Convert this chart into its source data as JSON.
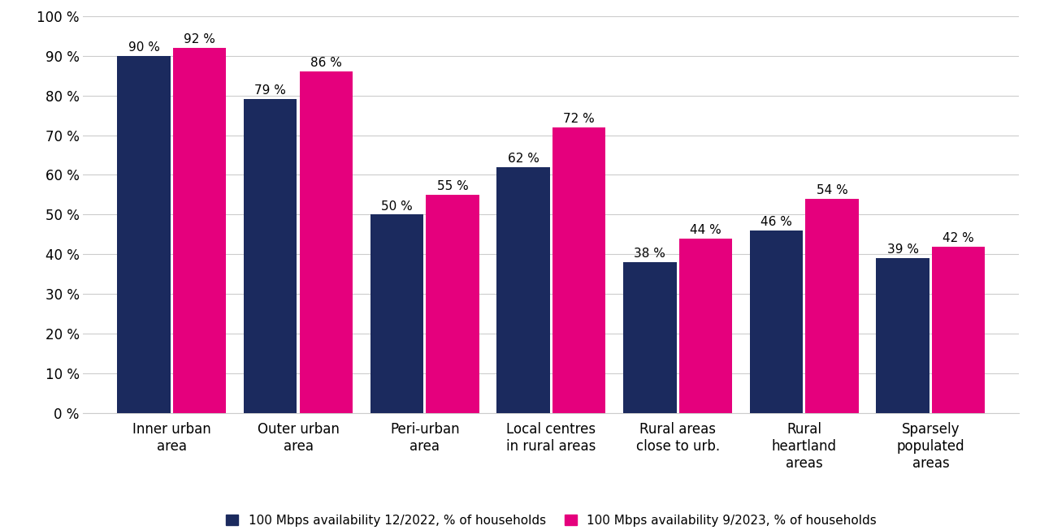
{
  "categories": [
    "Inner urban\narea",
    "Outer urban\narea",
    "Peri-urban\narea",
    "Local centres\nin rural areas",
    "Rural areas\nclose to urb.",
    "Rural\nheartland\nareas",
    "Sparsely\npopulated\nareas"
  ],
  "values_2022": [
    90,
    79,
    50,
    62,
    38,
    46,
    39
  ],
  "values_2023": [
    92,
    86,
    55,
    72,
    44,
    54,
    42
  ],
  "color_2022": "#1b2a5e",
  "color_2023": "#e5007d",
  "label_2022": "100 Mbps availability 12/2022, % of households",
  "label_2023": "100 Mbps availability 9/2023, % of households",
  "ylim": [
    0,
    100
  ],
  "yticks": [
    0,
    10,
    20,
    30,
    40,
    50,
    60,
    70,
    80,
    90,
    100
  ],
  "ytick_labels": [
    "0 %",
    "10 %",
    "20 %",
    "30 %",
    "40 %",
    "50 %",
    "60 %",
    "70 %",
    "80 %",
    "90 %",
    "100 %"
  ],
  "background_color": "#ffffff",
  "grid_color": "#cccccc",
  "bar_width": 0.42,
  "bar_gap": 0.02,
  "tick_fontsize": 12,
  "legend_fontsize": 11,
  "value_fontsize": 11
}
